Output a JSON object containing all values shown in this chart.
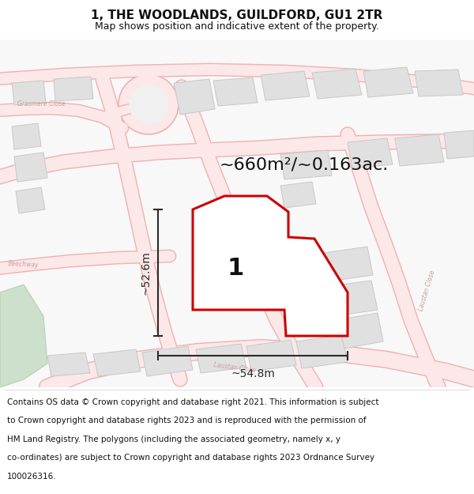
{
  "title": "1, THE WOODLANDS, GUILDFORD, GU1 2TR",
  "subtitle": "Map shows position and indicative extent of the property.",
  "area_text": "~660m²/~0.163ac.",
  "width_text": "~54.8m",
  "height_text": "~52.6m",
  "label_number": "1",
  "footer_lines": [
    "Contains OS data © Crown copyright and database right 2021. This information is subject",
    "to Crown copyright and database rights 2023 and is reproduced with the permission of",
    "HM Land Registry. The polygons (including the associated geometry, namely x, y",
    "co-ordinates) are subject to Crown copyright and database rights 2023 Ordnance Survey",
    "100026316."
  ],
  "map_bg": "#ffffff",
  "road_stroke": "#f0b0b0",
  "road_fill": "#fce8e8",
  "road_lw": 1.0,
  "building_fill": "#e0e0e0",
  "building_edge": "#c8c8c8",
  "building_lw": 0.7,
  "property_color": "#cc0000",
  "property_lw": 2.2,
  "dim_color": "#2a2a2a",
  "green_fill": "#d0e8d0",
  "title_fontsize": 11,
  "subtitle_fontsize": 9,
  "area_fontsize": 16,
  "footer_fontsize": 7.5,
  "number_fontsize": 22,
  "dim_fontsize": 10,
  "road_label_fontsize": 5.5,
  "road_label_color": "#c8a0a0"
}
